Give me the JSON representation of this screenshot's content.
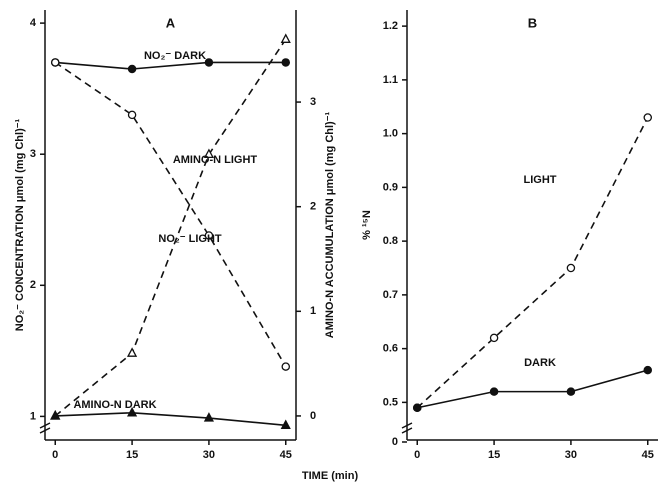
{
  "chart_data": [
    {
      "type": "line",
      "title": "A",
      "ylabel": "NO₂⁻ CONCENTRATION μmol (mg Chl)⁻¹",
      "y2label": "AMINO-N ACCUMULATION μmol (mg Chl)⁻¹",
      "x": [
        0,
        15,
        30,
        45
      ],
      "xlim": [
        -2,
        47
      ],
      "xticks": [
        0,
        15,
        30,
        45
      ],
      "ylim": [
        0.82,
        4.1
      ],
      "yticks": [
        1,
        2,
        3,
        4
      ],
      "y2lim": [
        -0.23,
        3.88
      ],
      "y2ticks": [
        0,
        1,
        2,
        3
      ],
      "series": [
        {
          "name": "NO₂⁻ DARK",
          "color": "#111111",
          "marker": "filled-circle",
          "dashed": false,
          "values": [
            3.7,
            3.65,
            3.7,
            3.7
          ]
        },
        {
          "name": "NO₂⁻ LIGHT",
          "color": "#111111",
          "marker": "open-circle",
          "dashed": true,
          "values": [
            3.7,
            3.3,
            2.38,
            1.38
          ]
        },
        {
          "name": "AMINO-N LIGHT",
          "color": "#111111",
          "marker": "open-triangle",
          "dashed": true,
          "axis": "y2",
          "values": [
            0,
            0.6,
            2.5,
            3.6
          ]
        },
        {
          "name": "AMINO-N DARK",
          "color": "#111111",
          "marker": "filled-triangle",
          "dashed": false,
          "axis": "y2",
          "values": [
            0,
            0.03,
            -0.02,
            -0.09
          ]
        }
      ]
    },
    {
      "type": "line",
      "title": "B",
      "ylabel": "% ¹⁵N",
      "x": [
        0,
        15,
        30,
        45
      ],
      "xlim": [
        -2,
        47
      ],
      "xticks": [
        0,
        15,
        30,
        45
      ],
      "ylim": [
        0.43,
        1.23
      ],
      "yticks": [
        0,
        0.5,
        0.6,
        0.7,
        0.8,
        0.9,
        {
          "value": 1.0,
          "label": "1.0"
        },
        1.1,
        1.2
      ],
      "series": [
        {
          "name": "LIGHT",
          "color": "#111111",
          "marker": "open-circle",
          "dashed": true,
          "values": [
            0.49,
            0.62,
            0.75,
            1.03
          ]
        },
        {
          "name": "DARK",
          "color": "#111111",
          "marker": "filled-circle",
          "dashed": false,
          "values": [
            0.49,
            0.52,
            0.52,
            0.56
          ]
        }
      ]
    }
  ],
  "xlabel": "TIME (min)"
}
